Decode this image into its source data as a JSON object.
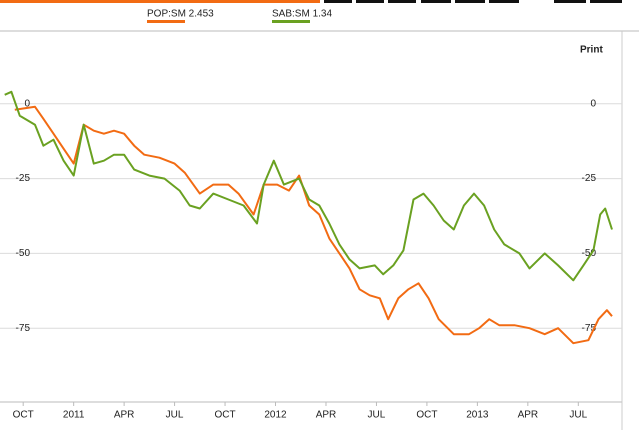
{
  "chart_data": {
    "type": "line",
    "print_label": "Print",
    "xlim": [
      -1.2,
      35.3
    ],
    "ylim": [
      -99,
      24
    ],
    "xticks": [
      {
        "value": 0,
        "label": "OCT"
      },
      {
        "value": 3,
        "label": "2011"
      },
      {
        "value": 6,
        "label": "APR"
      },
      {
        "value": 9,
        "label": "JUL"
      },
      {
        "value": 12,
        "label": "OCT"
      },
      {
        "value": 15,
        "label": "2012"
      },
      {
        "value": 18,
        "label": "APR"
      },
      {
        "value": 21,
        "label": "JUL"
      },
      {
        "value": 24,
        "label": "OCT"
      },
      {
        "value": 27,
        "label": "2013"
      },
      {
        "value": 30,
        "label": "APR"
      },
      {
        "value": 33,
        "label": "JUL"
      }
    ],
    "yticks": [
      0,
      -25,
      -50,
      -75
    ],
    "grid": true,
    "series": [
      {
        "name": "POP:SM 2.453",
        "color": "#f26b13",
        "x": [
          -0.5,
          0.7,
          1.2,
          1.8,
          2.4,
          3.0,
          3.6,
          4.2,
          4.8,
          5.4,
          6.0,
          6.6,
          7.2,
          8.1,
          9.0,
          9.6,
          10.5,
          11.3,
          12.2,
          12.8,
          13.7,
          14.3,
          15.1,
          15.8,
          16.4,
          17.0,
          17.6,
          18.2,
          18.8,
          19.4,
          20.0,
          20.6,
          21.2,
          21.7,
          22.3,
          22.9,
          23.5,
          24.1,
          24.7,
          25.6,
          26.5,
          27.1,
          27.7,
          28.3,
          29.2,
          30.1,
          31.0,
          31.8,
          32.7,
          33.6,
          34.2,
          34.7,
          35.0
        ],
        "values": [
          -2,
          -1,
          -5,
          -10,
          -15,
          -20,
          -7,
          -9,
          -10,
          -9,
          -10,
          -14,
          -17,
          -18,
          -20,
          -23,
          -30,
          -27,
          -27,
          -30,
          -37,
          -27,
          -27,
          -29,
          -24,
          -34,
          -37,
          -45,
          -50,
          -55,
          -62,
          -64,
          -65,
          -72,
          -65,
          -62,
          -60,
          -65,
          -72,
          -77,
          -77,
          -75,
          -72,
          -74,
          -74,
          -75,
          -77,
          -75,
          -80,
          -79,
          -72,
          -69,
          -71
        ]
      },
      {
        "name": "SAB:SM 1.34",
        "color": "#6aa121",
        "x": [
          -1.1,
          -0.7,
          -0.2,
          0.7,
          1.2,
          1.8,
          2.4,
          3.0,
          3.6,
          4.2,
          4.8,
          5.4,
          6.0,
          6.6,
          7.5,
          8.4,
          9.3,
          9.9,
          10.5,
          11.3,
          12.2,
          13.1,
          13.9,
          14.3,
          14.9,
          15.5,
          16.4,
          17.0,
          17.6,
          18.2,
          18.8,
          19.4,
          20.0,
          20.9,
          21.4,
          22.0,
          22.6,
          23.2,
          23.8,
          24.4,
          25.0,
          25.6,
          26.2,
          26.8,
          27.4,
          28.0,
          28.6,
          29.5,
          30.1,
          31.0,
          31.8,
          32.7,
          33.3,
          33.9,
          34.3,
          34.6,
          35.0
        ],
        "values": [
          3,
          4,
          -4,
          -7,
          -14,
          -12,
          -19,
          -24,
          -7,
          -20,
          -19,
          -17,
          -17,
          -22,
          -24,
          -25,
          -29,
          -34,
          -35,
          -30,
          -32,
          -34,
          -40,
          -27,
          -19,
          -27,
          -25,
          -32,
          -34,
          -40,
          -47,
          -52,
          -55,
          -54,
          -57,
          -54,
          -49,
          -32,
          -30,
          -34,
          -39,
          -42,
          -34,
          -30,
          -34,
          -42,
          -47,
          -50,
          -55,
          -50,
          -54,
          -59,
          -54,
          -49,
          -37,
          -35,
          -42
        ]
      }
    ]
  }
}
